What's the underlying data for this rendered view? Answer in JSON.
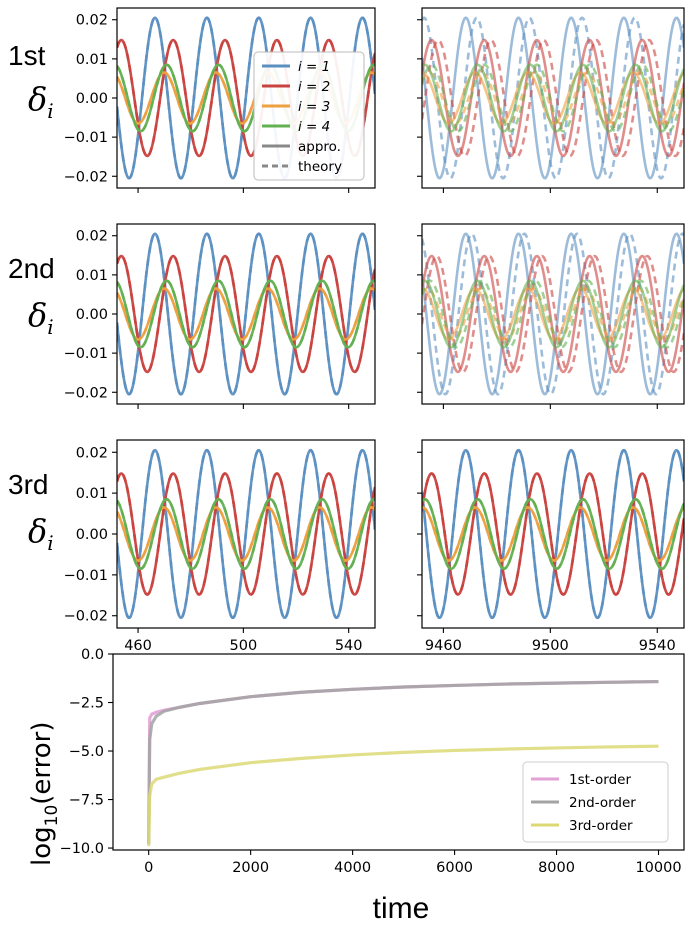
{
  "figure": {
    "row_labels": [
      "1st",
      "2nd",
      "3rd"
    ],
    "delta_label": "δ",
    "delta_sub": "i",
    "ylabel_main": "log",
    "ylabel_sub": "10",
    "ylabel_rest": "(error)",
    "xlabel": "time"
  },
  "colors": {
    "i1": "#5b8fc2",
    "i2": "#c9423f",
    "i3": "#ee9f3f",
    "i4": "#62b052",
    "legend_gray": "#888888",
    "order1": "#e2a2d7",
    "order2": "#a3a3a3",
    "order3": "#dcd975"
  },
  "chart_data": [
    {
      "type": "line",
      "panel": "1st-order, early window",
      "x_range": [
        452,
        550
      ],
      "ylim": [
        -0.023,
        0.023
      ],
      "yticks": [
        "0.02",
        "0.01",
        "0.00",
        "−0.01",
        "−0.02"
      ],
      "xticks": [
        "460",
        "500",
        "540"
      ],
      "series": [
        {
          "name": "i = 1",
          "amplitude": 0.0205,
          "period": 19.7,
          "phase": 3.6
        },
        {
          "name": "i = 2",
          "amplitude": 0.0148,
          "period": 19.7,
          "phase": 1.4
        },
        {
          "name": "i = 3",
          "amplitude": 0.0065,
          "period": 19.7,
          "phase": 2.5
        },
        {
          "name": "i = 4",
          "amplitude": 0.0085,
          "period": 19.7,
          "phase": 2.2
        }
      ],
      "legend": {
        "entries": [
          "i = 1",
          "i = 2",
          "i = 3",
          "i = 4",
          "appro.",
          "theory"
        ],
        "placement": "top-right"
      }
    },
    {
      "type": "line",
      "panel": "1st-order, late window",
      "x_range": [
        9452,
        9550
      ],
      "ylim": [
        -0.023,
        0.023
      ],
      "yticks": [],
      "xticks": [
        "9460",
        "9500",
        "9540"
      ],
      "series": [
        {
          "name": "i = 1",
          "amplitude": 0.0205,
          "period": 19.7,
          "phase": 3.9,
          "theory_phase": 2.6
        },
        {
          "name": "i = 2",
          "amplitude": 0.0148,
          "period": 19.7,
          "phase": 1.7,
          "theory_phase": 0.9
        },
        {
          "name": "i = 3",
          "amplitude": 0.0065,
          "period": 19.7,
          "phase": 2.8,
          "theory_phase": 2.0
        },
        {
          "name": "i = 4",
          "amplitude": 0.0085,
          "period": 19.7,
          "phase": 2.5,
          "theory_phase": 1.7
        }
      ]
    },
    {
      "type": "line",
      "panel": "2nd-order, early window",
      "x_range": [
        452,
        550
      ],
      "ylim": [
        -0.023,
        0.023
      ],
      "yticks": [
        "0.02",
        "0.01",
        "0.00",
        "−0.01",
        "−0.02"
      ],
      "xticks": [
        "460",
        "500",
        "540"
      ],
      "series": [
        {
          "name": "i = 1",
          "amplitude": 0.0205,
          "period": 19.7,
          "phase": 3.6
        },
        {
          "name": "i = 2",
          "amplitude": 0.0148,
          "period": 19.7,
          "phase": 1.4
        },
        {
          "name": "i = 3",
          "amplitude": 0.0065,
          "period": 19.7,
          "phase": 2.5
        },
        {
          "name": "i = 4",
          "amplitude": 0.0085,
          "period": 19.7,
          "phase": 2.2
        }
      ]
    },
    {
      "type": "line",
      "panel": "2nd-order, late window",
      "x_range": [
        9452,
        9550
      ],
      "ylim": [
        -0.023,
        0.023
      ],
      "yticks": [],
      "xticks": [
        "9460",
        "9500",
        "9540"
      ],
      "series": [
        {
          "name": "i = 1",
          "amplitude": 0.0205,
          "period": 19.7,
          "phase": 3.9,
          "theory_phase": 3.2
        },
        {
          "name": "i = 2",
          "amplitude": 0.0148,
          "period": 19.7,
          "phase": 1.7,
          "theory_phase": 1.1
        },
        {
          "name": "i = 3",
          "amplitude": 0.0065,
          "period": 19.7,
          "phase": 2.8,
          "theory_phase": 2.2
        },
        {
          "name": "i = 4",
          "amplitude": 0.0085,
          "period": 19.7,
          "phase": 2.5,
          "theory_phase": 1.9
        }
      ]
    },
    {
      "type": "line",
      "panel": "3rd-order, early window",
      "x_range": [
        452,
        550
      ],
      "ylim": [
        -0.023,
        0.023
      ],
      "yticks": [
        "0.02",
        "0.01",
        "0.00",
        "−0.01",
        "−0.02"
      ],
      "xticks": [
        "460",
        "500",
        "540"
      ],
      "series": [
        {
          "name": "i = 1",
          "amplitude": 0.0205,
          "period": 19.7,
          "phase": 3.6
        },
        {
          "name": "i = 2",
          "amplitude": 0.0148,
          "period": 19.7,
          "phase": 1.4
        },
        {
          "name": "i = 3",
          "amplitude": 0.0065,
          "period": 19.7,
          "phase": 2.5
        },
        {
          "name": "i = 4",
          "amplitude": 0.0085,
          "period": 19.7,
          "phase": 2.2
        }
      ]
    },
    {
      "type": "line",
      "panel": "3rd-order, late window",
      "x_range": [
        9452,
        9550
      ],
      "ylim": [
        -0.023,
        0.023
      ],
      "yticks": [],
      "xticks": [
        "9460",
        "9500",
        "9540"
      ],
      "series": [
        {
          "name": "i = 1",
          "amplitude": 0.0205,
          "period": 19.7,
          "phase": 3.9
        },
        {
          "name": "i = 2",
          "amplitude": 0.0148,
          "period": 19.7,
          "phase": 1.7
        },
        {
          "name": "i = 3",
          "amplitude": 0.0065,
          "period": 19.7,
          "phase": 2.8
        },
        {
          "name": "i = 4",
          "amplitude": 0.0085,
          "period": 19.7,
          "phase": 2.5
        }
      ]
    },
    {
      "type": "line",
      "panel": "error vs time",
      "xlim": [
        -700,
        10500
      ],
      "ylim": [
        -10.1,
        0.0
      ],
      "xticks": [
        "0",
        "2000",
        "4000",
        "6000",
        "8000",
        "10000"
      ],
      "yticks": [
        "0.0",
        "−2.5",
        "−5.0",
        "−7.5",
        "−10.0"
      ],
      "legend": {
        "entries": [
          "1st-order",
          "2nd-order",
          "3rd-order"
        ],
        "placement": "lower-right"
      },
      "series": [
        {
          "name": "1st-order",
          "x": [
            0,
            20,
            60,
            150,
            300,
            600,
            1000,
            2000,
            3000,
            4000,
            5000,
            6000,
            7000,
            8000,
            9000,
            10000
          ],
          "y": [
            -9.8,
            -3.3,
            -3.1,
            -3.0,
            -2.9,
            -2.75,
            -2.55,
            -2.2,
            -1.97,
            -1.82,
            -1.7,
            -1.62,
            -1.55,
            -1.5,
            -1.46,
            -1.42
          ]
        },
        {
          "name": "2nd-order",
          "x": [
            0,
            20,
            60,
            150,
            300,
            600,
            1000,
            2000,
            3000,
            4000,
            5000,
            6000,
            7000,
            8000,
            9000,
            10000
          ],
          "y": [
            -9.8,
            -4.4,
            -3.6,
            -3.2,
            -2.95,
            -2.75,
            -2.55,
            -2.2,
            -1.97,
            -1.82,
            -1.7,
            -1.62,
            -1.55,
            -1.5,
            -1.46,
            -1.42
          ]
        },
        {
          "name": "3rd-order",
          "x": [
            0,
            20,
            60,
            150,
            300,
            600,
            1000,
            2000,
            3000,
            4000,
            5000,
            6000,
            7000,
            8000,
            9000,
            10000
          ],
          "y": [
            -9.9,
            -7.3,
            -6.7,
            -6.45,
            -6.35,
            -6.15,
            -5.95,
            -5.6,
            -5.38,
            -5.2,
            -5.07,
            -4.97,
            -4.9,
            -4.84,
            -4.79,
            -4.75
          ]
        }
      ]
    }
  ]
}
